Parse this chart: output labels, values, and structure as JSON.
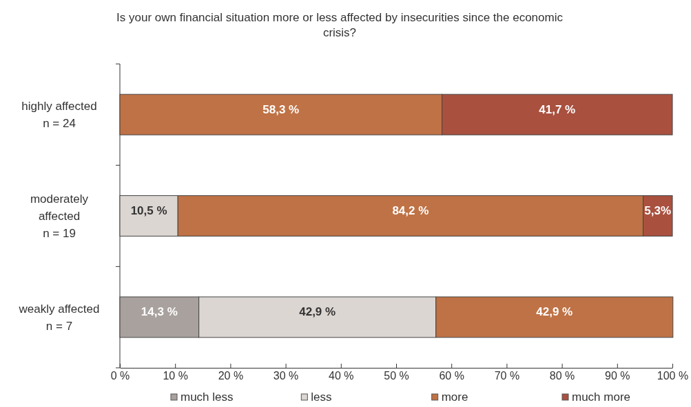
{
  "chart_data": {
    "type": "bar",
    "orientation": "horizontal",
    "stacked": true,
    "title": "Is your own financial situation more or less affected by insecurities since the economic crisis?",
    "categories": [
      "highly affected\nn = 24",
      "moderately\naffected\nn = 19",
      "weakly affected\nn = 7"
    ],
    "series": [
      {
        "name": "much less",
        "color": "#a8a19e",
        "values": [
          null,
          null,
          14.3
        ],
        "value_labels": [
          null,
          null,
          "14,3 %"
        ]
      },
      {
        "name": "less",
        "color": "#dcd6d3",
        "values": [
          null,
          10.5,
          42.9
        ],
        "value_labels": [
          null,
          "10,5 %",
          "42,9 %"
        ]
      },
      {
        "name": "more",
        "color": "#bf7245",
        "values": [
          58.3,
          84.2,
          42.9
        ],
        "value_labels": [
          "58,3 %",
          "84,2 %",
          "42,9 %"
        ]
      },
      {
        "name": "much more",
        "color": "#a9503f",
        "values": [
          41.7,
          5.3,
          null
        ],
        "value_labels": [
          "41,7 %",
          "5,3%",
          null
        ]
      }
    ],
    "xlim": [
      0,
      100
    ],
    "xticks": [
      {
        "value": 0,
        "label": "0 %"
      },
      {
        "value": 10,
        "label": "10 %"
      },
      {
        "value": 20,
        "label": "20 %"
      },
      {
        "value": 30,
        "label": "30 %"
      },
      {
        "value": 40,
        "label": "40 %"
      },
      {
        "value": 50,
        "label": "50 %"
      },
      {
        "value": 60,
        "label": "60 %"
      },
      {
        "value": 70,
        "label": "70 %"
      },
      {
        "value": 80,
        "label": "80 %"
      },
      {
        "value": 90,
        "label": "90 %"
      },
      {
        "value": 100,
        "label": "100 %"
      }
    ],
    "legend": "bottom"
  }
}
